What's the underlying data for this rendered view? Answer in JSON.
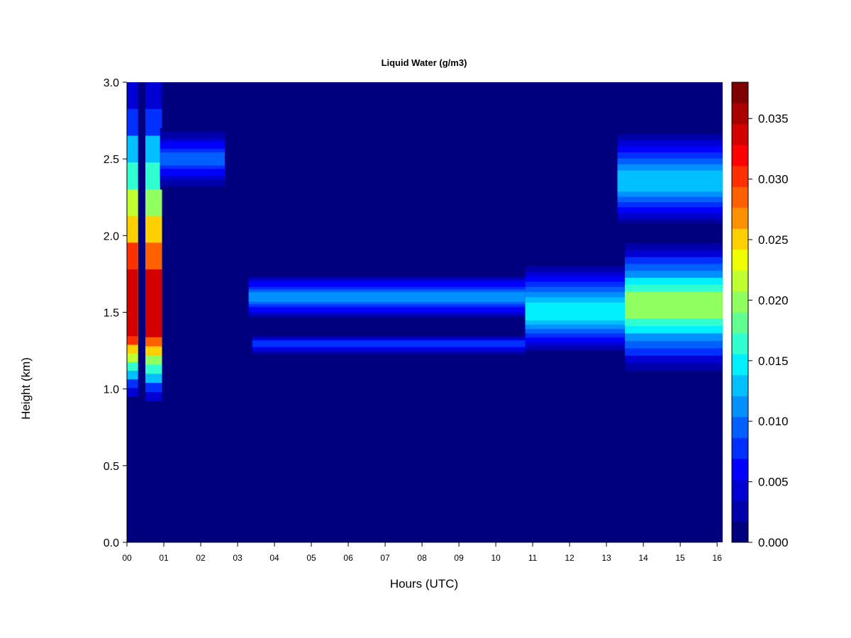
{
  "chart_data": {
    "type": "heatmap",
    "title": "Liquid Water (g/m3)",
    "xlabel": "Hours (UTC)",
    "ylabel": "Height (km)",
    "xlim": [
      0,
      16.15
    ],
    "ylim": [
      0,
      3.0
    ],
    "x_ticks": [
      {
        "value": 0,
        "label": "00"
      },
      {
        "value": 1,
        "label": "01"
      },
      {
        "value": 2,
        "label": "02"
      },
      {
        "value": 3,
        "label": "03"
      },
      {
        "value": 4,
        "label": "04"
      },
      {
        "value": 5,
        "label": "05"
      },
      {
        "value": 6,
        "label": "06"
      },
      {
        "value": 7,
        "label": "07"
      },
      {
        "value": 8,
        "label": "08"
      },
      {
        "value": 9,
        "label": "09"
      },
      {
        "value": 10,
        "label": "10"
      },
      {
        "value": 11,
        "label": "11"
      },
      {
        "value": 12,
        "label": "12"
      },
      {
        "value": 13,
        "label": "13"
      },
      {
        "value": 14,
        "label": "14"
      },
      {
        "value": 15,
        "label": "15"
      },
      {
        "value": 16,
        "label": "16"
      }
    ],
    "y_ticks": [
      {
        "value": 0.0,
        "label": "0.0"
      },
      {
        "value": 0.5,
        "label": "0.5"
      },
      {
        "value": 1.0,
        "label": "1.0"
      },
      {
        "value": 1.5,
        "label": "1.5"
      },
      {
        "value": 2.0,
        "label": "2.0"
      },
      {
        "value": 2.5,
        "label": "2.5"
      },
      {
        "value": 3.0,
        "label": "3.0"
      }
    ],
    "colorbar": {
      "range": [
        0,
        0.038
      ],
      "colors": [
        "#00007F",
        "#0000AA",
        "#0000D4",
        "#0000FF",
        "#0030FF",
        "#0060FF",
        "#0090FF",
        "#00C0FF",
        "#00F0FF",
        "#30FFD0",
        "#60FF90",
        "#90FF60",
        "#C0FF30",
        "#F0FF00",
        "#FFD000",
        "#FF9000",
        "#FF6000",
        "#FF3000",
        "#FF0000",
        "#D40000",
        "#AA0000",
        "#7F0000"
      ],
      "tick_values": [
        0.0,
        0.005,
        0.01,
        0.015,
        0.02,
        0.025,
        0.03,
        0.035
      ],
      "tick_labels": [
        "0.000",
        "0.005",
        "0.010",
        "0.015",
        "0.020",
        "0.025",
        "0.030",
        "0.035"
      ]
    },
    "features": [
      {
        "name": "early-cloud-column-1",
        "x": [
          0.0,
          0.3
        ],
        "y": [
          0.95,
          3.0
        ],
        "peak_value": 0.034,
        "peak_height": 1.45
      },
      {
        "name": "early-cloud-column-2",
        "x": [
          0.5,
          0.95
        ],
        "y": [
          0.92,
          3.0
        ],
        "peak_value": 0.033,
        "peak_height": 1.45
      },
      {
        "name": "upper-layer-early",
        "x": [
          0.9,
          2.65
        ],
        "y": [
          2.3,
          2.7
        ],
        "peak_value": 0.009,
        "peak_height": 2.5
      },
      {
        "name": "main-layer-upper-band",
        "x": [
          3.3,
          10.8
        ],
        "y": [
          1.45,
          1.75
        ],
        "peak_value": 0.011,
        "peak_height": 1.6
      },
      {
        "name": "main-layer-lower-band",
        "x": [
          3.4,
          10.8
        ],
        "y": [
          1.22,
          1.35
        ],
        "peak_value": 0.008,
        "peak_height": 1.3
      },
      {
        "name": "merged-layer-afternoon",
        "x": [
          10.8,
          13.5
        ],
        "y": [
          1.25,
          1.8
        ],
        "peak_value": 0.014,
        "peak_height": 1.5
      },
      {
        "name": "thick-layer-late",
        "x": [
          13.5,
          16.15
        ],
        "y": [
          1.12,
          1.95
        ],
        "peak_value": 0.019,
        "peak_height": 1.55
      },
      {
        "name": "upper-layer-late",
        "x": [
          13.3,
          16.15
        ],
        "y": [
          2.05,
          2.7
        ],
        "peak_value": 0.013,
        "peak_height": 2.35
      }
    ]
  }
}
